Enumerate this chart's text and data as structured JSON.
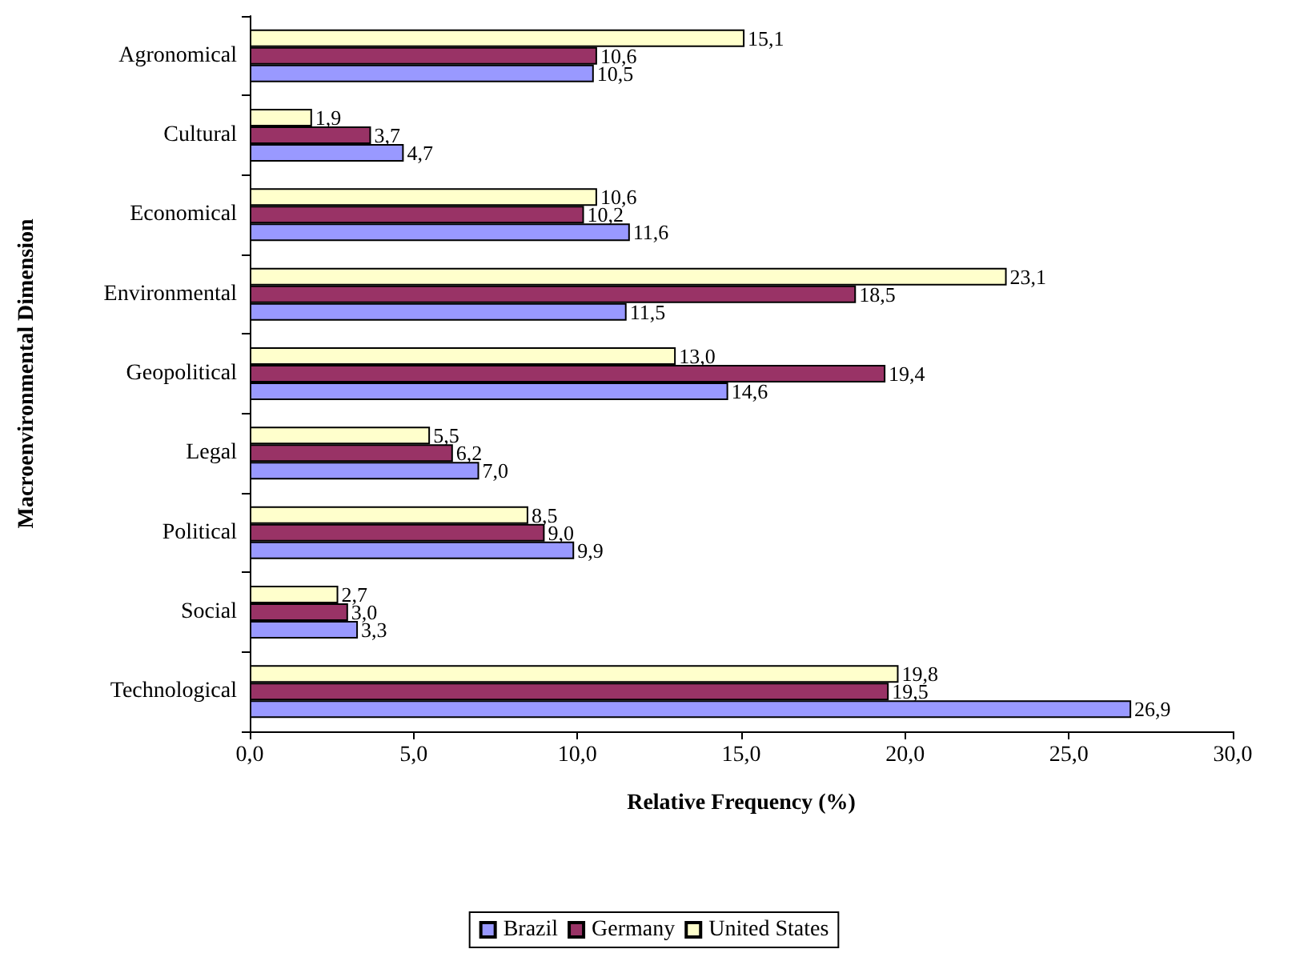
{
  "chart_data": {
    "type": "bar",
    "orientation": "horizontal",
    "xlabel": "Relative Frequency (%)",
    "ylabel": "Macroenvironmental Dimension",
    "categories": [
      "Agronomical",
      "Cultural",
      "Economical",
      "Environmental",
      "Geopolitical",
      "Legal",
      "Political",
      "Social",
      "Technological"
    ],
    "series": [
      {
        "name": "Brazil",
        "color": "#9999ff",
        "values": [
          10.5,
          4.7,
          11.6,
          11.5,
          14.6,
          7.0,
          9.9,
          3.3,
          26.9
        ],
        "value_labels": [
          "10,5",
          "4,7",
          "11,6",
          "11,5",
          "14,6",
          "7,0",
          "9,9",
          "3,3",
          "26,9"
        ]
      },
      {
        "name": "Germany",
        "color": "#993366",
        "values": [
          10.6,
          3.7,
          10.2,
          18.5,
          19.4,
          6.2,
          9.0,
          3.0,
          19.5
        ],
        "value_labels": [
          "10,6",
          "3,7",
          "10,2",
          "18,5",
          "19,4",
          "6,2",
          "9,0",
          "3,0",
          "19,5"
        ]
      },
      {
        "name": "United States",
        "color": "#ffffcc",
        "values": [
          15.1,
          1.9,
          10.6,
          23.1,
          13.0,
          5.5,
          8.5,
          2.7,
          19.8
        ],
        "value_labels": [
          "15,1",
          "1,9",
          "10,6",
          "23,1",
          "13,0",
          "5,5",
          "8,5",
          "2,7",
          "19,8"
        ]
      }
    ],
    "xlim": [
      0,
      30
    ],
    "xticks": [
      {
        "value": 0,
        "label": "0,0"
      },
      {
        "value": 5,
        "label": "5,0"
      },
      {
        "value": 10,
        "label": "10,0"
      },
      {
        "value": 15,
        "label": "15,0"
      },
      {
        "value": 20,
        "label": "20,0"
      },
      {
        "value": 25,
        "label": "25,0"
      },
      {
        "value": 30,
        "label": "30,0"
      }
    ],
    "grid": false,
    "legend": "bottom"
  }
}
